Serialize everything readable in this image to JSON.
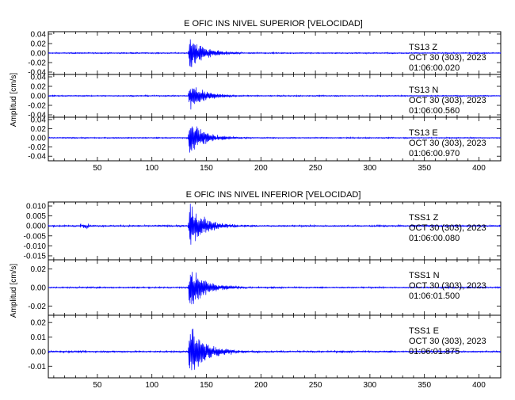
{
  "chart_data": [
    {
      "type": "seismogram",
      "title": "E OFIC INS NIVEL SUPERIOR [VELOCIDAD]",
      "ylabel": "Amplitud [cm/s]",
      "xlim": [
        5,
        420
      ],
      "xticks": [
        "50",
        "100",
        "150",
        "200",
        "250",
        "300",
        "350",
        "400"
      ],
      "trace_color": "#0000ff",
      "channels": [
        {
          "station": "TS13",
          "component": "Z",
          "date": "OCT 30 (303), 2023",
          "time": "01:06:00.020",
          "ylim": [
            -0.045,
            0.045
          ],
          "yticks": [
            "0.04",
            "0.02",
            "0.00",
            "-0.02",
            "-0.04"
          ],
          "onset_time": 133,
          "peak_amplitude": 0.04,
          "noise_level": 0.0012
        },
        {
          "station": "TS13",
          "component": "N",
          "date": "OCT 30 (303), 2023",
          "time": "01:06:00.560",
          "ylim": [
            -0.045,
            0.045
          ],
          "yticks": [
            "0.04",
            "0.02",
            "0.00",
            "-0.02",
            "-0.04"
          ],
          "onset_time": 133,
          "peak_amplitude": 0.035,
          "noise_level": 0.0012
        },
        {
          "station": "TS13",
          "component": "E",
          "date": "OCT 30 (303), 2023",
          "time": "01:06:00.970",
          "ylim": [
            -0.05,
            0.045
          ],
          "yticks": [
            "0.04",
            "0.02",
            "0.00",
            "-0.02",
            "-0.04"
          ],
          "onset_time": 133,
          "peak_amplitude": 0.048,
          "noise_level": 0.0012
        }
      ]
    },
    {
      "type": "seismogram",
      "title": "E OFIC INS NIVEL INFERIOR [VELOCIDAD]",
      "ylabel": "Amplitud [cm/s]",
      "xlim": [
        5,
        420
      ],
      "xticks": [
        "50",
        "100",
        "150",
        "200",
        "250",
        "300",
        "350",
        "400"
      ],
      "trace_color": "#0000ff",
      "channels": [
        {
          "station": "TSS1",
          "component": "Z",
          "date": "OCT 30 (303), 2023",
          "time": "01:06:00.080",
          "ylim": [
            -0.017,
            0.012
          ],
          "yticks": [
            "0.010",
            "0.005",
            "0.000",
            "-0.005",
            "-0.010",
            "-0.015"
          ],
          "onset_time": 133,
          "peak_amplitude": 0.014,
          "noise_level": 0.0004
        },
        {
          "station": "TSS1",
          "component": "N",
          "date": "OCT 30 (303), 2023",
          "time": "01:06:01.500",
          "ylim": [
            -0.03,
            0.03
          ],
          "yticks": [
            "0.02",
            "0.00",
            "-0.02"
          ],
          "onset_time": 133,
          "peak_amplitude": 0.03,
          "noise_level": 0.0008
        },
        {
          "station": "TSS1",
          "component": "E",
          "date": "OCT 30 (303), 2023",
          "time": "01:06:01.875",
          "ylim": [
            -0.018,
            0.025
          ],
          "yticks": [
            "0.02",
            "0.01",
            "0.00",
            "-0.01"
          ],
          "onset_time": 133,
          "peak_amplitude": 0.025,
          "noise_level": 0.0006
        }
      ]
    }
  ]
}
